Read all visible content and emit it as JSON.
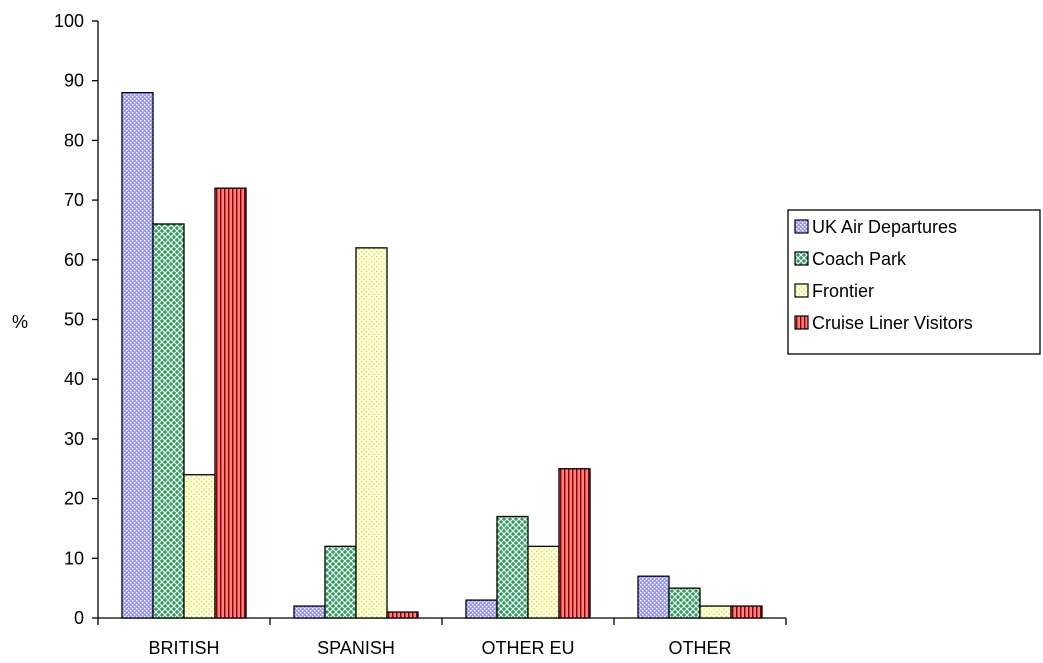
{
  "chart_data": {
    "type": "bar",
    "title": "",
    "xlabel": "",
    "ylabel": "%",
    "ylim": [
      0,
      100
    ],
    "yticks": [
      0,
      10,
      20,
      30,
      40,
      50,
      60,
      70,
      80,
      90,
      100
    ],
    "categories": [
      "BRITISH",
      "SPANISH",
      "OTHER EU",
      "OTHER"
    ],
    "series": [
      {
        "name": "UK Air Departures",
        "values": [
          88,
          2,
          3,
          7
        ],
        "color": "#9999ff",
        "pattern": "dots-dense"
      },
      {
        "name": "Coach Park",
        "values": [
          66,
          12,
          17,
          5
        ],
        "color": "#339966",
        "pattern": "crosshatch"
      },
      {
        "name": "Frontier",
        "values": [
          24,
          62,
          12,
          2
        ],
        "color": "#ffffcc",
        "pattern": "dots-sparse"
      },
      {
        "name": "Cruise Liner Visitors",
        "values": [
          72,
          1,
          25,
          2
        ],
        "color": "#ff8080",
        "pattern": "vertical-stripes"
      }
    ],
    "grid": false,
    "legend_position": "right"
  }
}
